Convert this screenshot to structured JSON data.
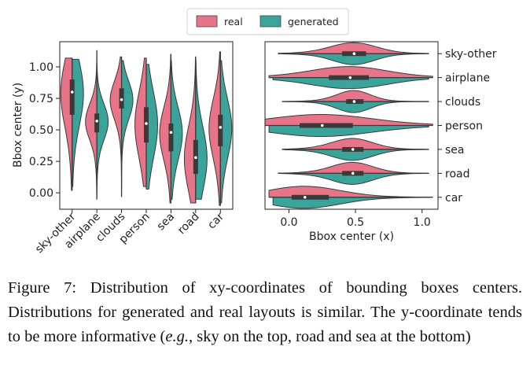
{
  "legend": {
    "entries": [
      {
        "label": "real",
        "color": "#e8748a"
      },
      {
        "label": "generated",
        "color": "#3aa49a"
      }
    ]
  },
  "chart_data": [
    {
      "type": "violin",
      "split": true,
      "orientation": "vertical",
      "ylabel": "Bbox center (y)",
      "ylim": [
        -0.13,
        1.2
      ],
      "yticks": [
        "0.00",
        "0.25",
        "0.50",
        "0.75",
        "1.00"
      ],
      "categories": [
        "sky-other",
        "airplane",
        "clouds",
        "person",
        "sea",
        "road",
        "car"
      ],
      "series": [
        {
          "name": "real",
          "color": "#e8748a",
          "distributions": [
            {
              "min": 0.02,
              "max": 1.07,
              "q1": 0.62,
              "median": 0.8,
              "q3": 0.9
            },
            {
              "min": -0.05,
              "max": 1.13,
              "q1": 0.48,
              "median": 0.57,
              "q3": 0.63
            },
            {
              "min": -0.03,
              "max": 1.08,
              "q1": 0.67,
              "median": 0.74,
              "q3": 0.83
            },
            {
              "min": 0.05,
              "max": 1.07,
              "q1": 0.4,
              "median": 0.55,
              "q3": 0.68
            },
            {
              "min": -0.08,
              "max": 1.1,
              "q1": 0.33,
              "median": 0.48,
              "q3": 0.55
            },
            {
              "min": -0.08,
              "max": 1.08,
              "q1": 0.15,
              "median": 0.28,
              "q3": 0.42
            },
            {
              "min": -0.1,
              "max": 1.12,
              "q1": 0.37,
              "median": 0.52,
              "q3": 0.62
            }
          ]
        },
        {
          "name": "generated",
          "color": "#3aa49a",
          "distributions": [
            {
              "min": 0.05,
              "max": 1.06,
              "q1": 0.63,
              "median": 0.8,
              "q3": 0.9
            },
            {
              "min": -0.02,
              "max": 1.03,
              "q1": 0.48,
              "median": 0.57,
              "q3": 0.63
            },
            {
              "min": 0.05,
              "max": 1.05,
              "q1": 0.67,
              "median": 0.74,
              "q3": 0.83
            },
            {
              "min": 0.03,
              "max": 1.02,
              "q1": 0.4,
              "median": 0.55,
              "q3": 0.68
            },
            {
              "min": -0.05,
              "max": 1.05,
              "q1": 0.33,
              "median": 0.48,
              "q3": 0.55
            },
            {
              "min": -0.05,
              "max": 1.05,
              "q1": 0.15,
              "median": 0.28,
              "q3": 0.42
            },
            {
              "min": -0.08,
              "max": 1.05,
              "q1": 0.37,
              "median": 0.52,
              "q3": 0.62
            }
          ]
        }
      ]
    },
    {
      "type": "violin",
      "split": true,
      "orientation": "horizontal",
      "xlabel": "Bbox center (x)",
      "xlim": [
        -0.18,
        1.12
      ],
      "xticks": [
        "0.0",
        "0.5",
        "1.0"
      ],
      "categories": [
        "sky-other",
        "airplane",
        "clouds",
        "person",
        "sea",
        "road",
        "car"
      ],
      "series": [
        {
          "name": "real",
          "color": "#e8748a",
          "distributions": [
            {
              "min": -0.08,
              "max": 1.05,
              "q1": 0.4,
              "median": 0.49,
              "q3": 0.58
            },
            {
              "min": -0.15,
              "max": 1.08,
              "q1": 0.3,
              "median": 0.46,
              "q3": 0.6
            },
            {
              "min": -0.05,
              "max": 1.05,
              "q1": 0.43,
              "median": 0.49,
              "q3": 0.56
            },
            {
              "min": -0.18,
              "max": 1.08,
              "q1": 0.08,
              "median": 0.25,
              "q3": 0.48
            },
            {
              "min": -0.05,
              "max": 1.05,
              "q1": 0.4,
              "median": 0.48,
              "q3": 0.56
            },
            {
              "min": -0.08,
              "max": 1.05,
              "q1": 0.4,
              "median": 0.48,
              "q3": 0.56
            },
            {
              "min": -0.15,
              "max": 1.08,
              "q1": 0.02,
              "median": 0.12,
              "q3": 0.3
            }
          ]
        },
        {
          "name": "generated",
          "color": "#3aa49a",
          "distributions": [
            {
              "min": -0.05,
              "max": 1.02,
              "q1": 0.42,
              "median": 0.49,
              "q3": 0.58
            },
            {
              "min": -0.12,
              "max": 1.05,
              "q1": 0.3,
              "median": 0.46,
              "q3": 0.6
            },
            {
              "min": -0.03,
              "max": 1.03,
              "q1": 0.43,
              "median": 0.49,
              "q3": 0.56
            },
            {
              "min": -0.15,
              "max": 1.05,
              "q1": 0.08,
              "median": 0.25,
              "q3": 0.48
            },
            {
              "min": -0.03,
              "max": 1.03,
              "q1": 0.4,
              "median": 0.48,
              "q3": 0.56
            },
            {
              "min": -0.05,
              "max": 1.03,
              "q1": 0.4,
              "median": 0.48,
              "q3": 0.56
            },
            {
              "min": -0.12,
              "max": 1.05,
              "q1": 0.02,
              "median": 0.12,
              "q3": 0.3
            }
          ]
        }
      ]
    }
  ],
  "caption": {
    "label": "Figure 7:",
    "text_before": " Distribution of xy-coordinates of bounding boxes centers. Distributions for generated and real layouts is similar. The y-coordinate tends to be more informative (",
    "italic": "e.g.",
    "text_after": ", sky on the top, road and sea at the bottom)"
  }
}
